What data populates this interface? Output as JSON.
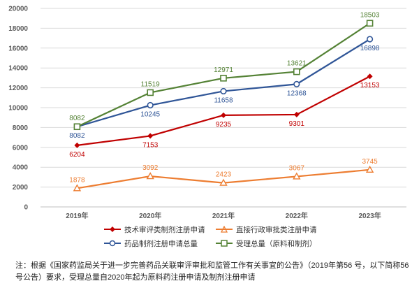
{
  "chart_data": {
    "type": "line",
    "title": "",
    "xlabel": "",
    "ylabel": "",
    "categories": [
      "2019年",
      "2020年",
      "2021年",
      "2022年",
      "2023年"
    ],
    "ylim": [
      0,
      20000
    ],
    "yticks": [
      0,
      2000,
      4000,
      6000,
      8000,
      10000,
      12000,
      14000,
      16000,
      18000,
      20000
    ],
    "grid": "horizontal",
    "legend_position": "bottom",
    "series": [
      {
        "name": "技术审评类制剂注册申请",
        "values": [
          6204,
          7153,
          9235,
          9301,
          13153
        ],
        "color": "#C00000",
        "marker": "diamond"
      },
      {
        "name": "直接行政审批类注册申请",
        "values": [
          1878,
          3092,
          2423,
          3067,
          3745
        ],
        "color": "#ED7D31",
        "marker": "triangle"
      },
      {
        "name": "药品制剂注册申请总量",
        "values": [
          8082,
          10245,
          11658,
          12368,
          16898
        ],
        "color": "#2F5597",
        "marker": "circle"
      },
      {
        "name": "受理总量（原料和制剂）",
        "values": [
          8082,
          11519,
          12971,
          13621,
          18503
        ],
        "color": "#548235",
        "marker": "square"
      }
    ]
  },
  "note": "注：根据《国家药监局关于进一步完善药品关联审评审批和监管工作有关事宜的公告》（2019年第56 号，以下简称56号公告）要求，受理总量自2020年起为原料药注册申请及制剂注册申请"
}
